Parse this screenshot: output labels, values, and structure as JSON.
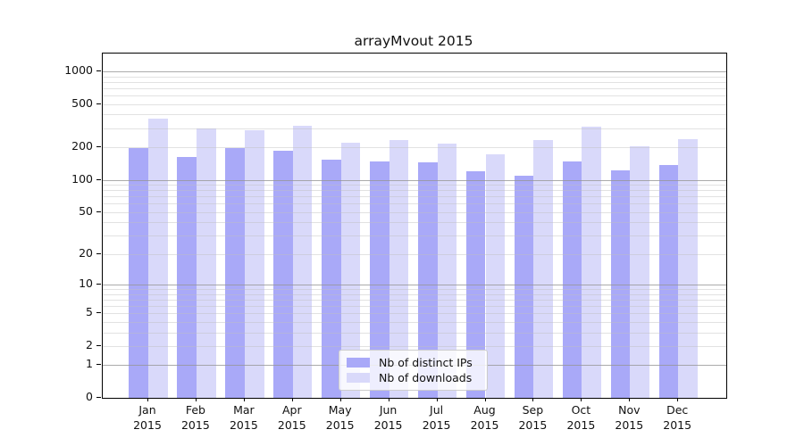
{
  "title": "arrayMvout 2015",
  "chart_data": {
    "type": "bar",
    "categories": [
      "Jan\n2015",
      "Feb\n2015",
      "Mar\n2015",
      "Apr\n2015",
      "May\n2015",
      "Jun\n2015",
      "Jul\n2015",
      "Aug\n2015",
      "Sep\n2015",
      "Oct\n2015",
      "Nov\n2015",
      "Dec\n2015"
    ],
    "series": [
      {
        "name": "Nb of distinct IPs",
        "color": "#a9a9f8",
        "values": [
          195,
          162,
          196,
          186,
          154,
          148,
          144,
          119,
          108,
          149,
          122,
          138
        ]
      },
      {
        "name": "Nb of downloads",
        "color": "#d9d9fa",
        "values": [
          370,
          298,
          288,
          316,
          221,
          232,
          216,
          171,
          234,
          311,
          203,
          238
        ]
      }
    ],
    "yticks": [
      0,
      1,
      2,
      5,
      10,
      20,
      50,
      100,
      200,
      500,
      1000
    ],
    "yscale": "log10(1+v)",
    "ylim": [
      0,
      1450
    ],
    "xlabel": "",
    "ylabel": "",
    "grid": true,
    "legend_position": "inside-bottom-center"
  },
  "colors": {
    "grid_major": "rgba(150,150,150,0.8)",
    "grid_minor": "rgba(190,190,190,0.45)",
    "spine": "#000000",
    "background": "#ffffff"
  }
}
